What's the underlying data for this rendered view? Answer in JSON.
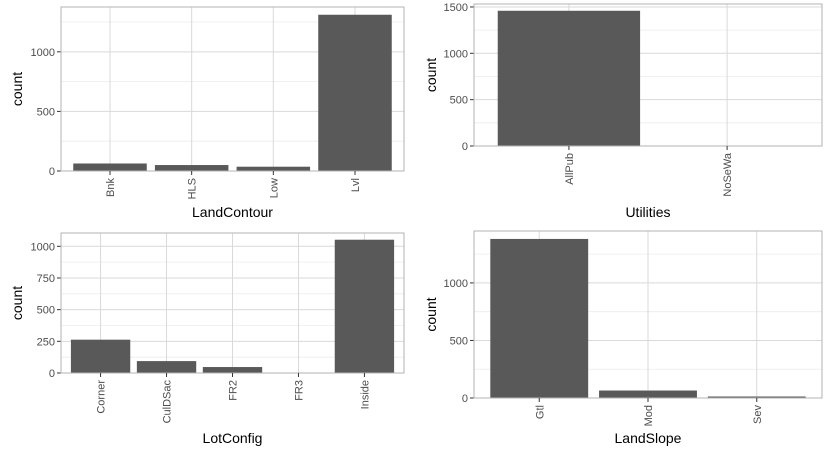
{
  "bar_color": "#595959",
  "chart_data": [
    {
      "type": "bar",
      "xlabel": "LandContour",
      "ylabel": "count",
      "categories": [
        "Bnk",
        "HLS",
        "Low",
        "Lvl"
      ],
      "values": [
        63,
        50,
        36,
        1311
      ],
      "ylim": [
        0,
        1376
      ],
      "yticks": [
        0,
        500,
        1000
      ],
      "grid": true
    },
    {
      "type": "bar",
      "xlabel": "Utilities",
      "ylabel": "count",
      "categories": [
        "AllPub",
        "NoSeWa"
      ],
      "values": [
        1459,
        1
      ],
      "ylim": [
        0,
        1532
      ],
      "yticks": [
        0,
        500,
        1000,
        1500
      ],
      "grid": true
    },
    {
      "type": "bar",
      "xlabel": "LotConfig",
      "ylabel": "count",
      "categories": [
        "Corner",
        "CulDSac",
        "FR2",
        "FR3",
        "Inside"
      ],
      "values": [
        263,
        94,
        47,
        4,
        1052
      ],
      "ylim": [
        0,
        1105
      ],
      "yticks": [
        0,
        250,
        500,
        750,
        1000
      ],
      "grid": true
    },
    {
      "type": "bar",
      "xlabel": "LandSlope",
      "ylabel": "count",
      "categories": [
        "Gtl",
        "Mod",
        "Sev"
      ],
      "values": [
        1382,
        65,
        13
      ],
      "ylim": [
        0,
        1451
      ],
      "yticks": [
        0,
        500,
        1000
      ],
      "grid": true
    }
  ]
}
